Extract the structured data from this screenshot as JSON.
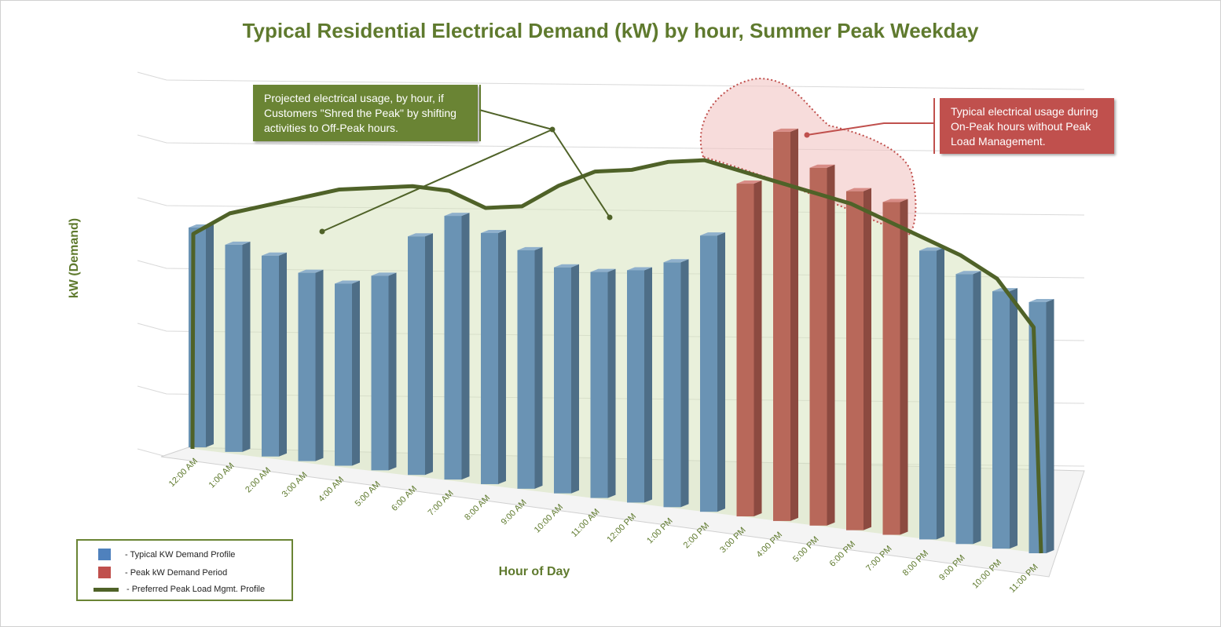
{
  "chart_data": {
    "type": "bar",
    "title": "Typical Residential Electrical Demand (kW) by hour, Summer Peak Weekday",
    "xlabel": "Hour of Day",
    "ylabel": "kW (Demand)",
    "ylim": [
      0,
      7
    ],
    "grid": true,
    "legend_placement": "bottom-left",
    "categories": [
      "12:00 AM",
      "1:00 AM",
      "2:00 AM",
      "3:00 AM",
      "4:00 AM",
      "5:00 AM",
      "6:00 AM",
      "7:00 AM",
      "8:00 AM",
      "9:00 AM",
      "10:00 AM",
      "11:00 AM",
      "12:00 PM",
      "1:00 PM",
      "2:00 PM",
      "3:00 PM",
      "4:00 PM",
      "5:00 PM",
      "6:00 PM",
      "7:00 PM",
      "8:00 PM",
      "9:00 PM",
      "10:00 PM",
      "11:00 PM"
    ],
    "series": [
      {
        "name": "- Typical KW Demand Profile",
        "type": "bar",
        "color": "#4f81bd",
        "values": [
          3.5,
          3.3,
          3.2,
          3.0,
          2.9,
          3.1,
          3.8,
          4.2,
          4.0,
          3.8,
          3.6,
          3.6,
          3.7,
          3.9,
          4.4,
          null,
          null,
          null,
          null,
          null,
          4.6,
          4.3,
          4.1,
          4.0
        ]
      },
      {
        "name": "- Peak kW Demand Period",
        "type": "bar",
        "color": "#c0504d",
        "values": [
          null,
          null,
          null,
          null,
          null,
          null,
          null,
          null,
          null,
          null,
          null,
          null,
          null,
          null,
          null,
          5.3,
          6.2,
          5.7,
          5.4,
          5.3,
          null,
          null,
          null,
          null
        ]
      },
      {
        "name": "- Preferred Peak Load Mgmt. Profile",
        "type": "line",
        "color": "#4f6228",
        "values": [
          3.4,
          3.8,
          4.0,
          4.2,
          4.4,
          4.5,
          4.6,
          4.6,
          4.4,
          4.5,
          4.9,
          5.2,
          5.3,
          5.5,
          5.6,
          5.5,
          5.4,
          5.3,
          5.2,
          5.0,
          4.8,
          4.6,
          4.3,
          3.6
        ]
      }
    ],
    "annotations": [
      {
        "text": "Projected electrical usage, by hour, if Customers \"Shred the Peak\" by shifting activities to Off-Peak hours.",
        "color": "#6a8434"
      },
      {
        "text": "Typical electrical usage during On-Peak hours without Peak Load Management.",
        "color": "#c0504d"
      }
    ]
  }
}
